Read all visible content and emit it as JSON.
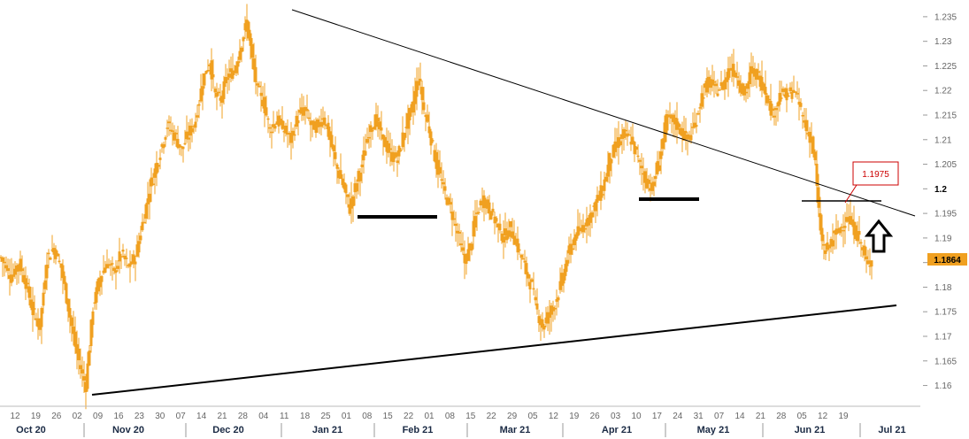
{
  "chart_data": {
    "type": "candlestick",
    "title": "",
    "xlabel": "",
    "ylabel": "",
    "ylim": [
      1.1565,
      1.2375
    ],
    "y_ticks": [
      "1.16",
      "1.165",
      "1.17",
      "1.175",
      "1.18",
      "1.185",
      "1.19",
      "1.195",
      "1.2",
      "1.205",
      "1.21",
      "1.215",
      "1.22",
      "1.225",
      "1.23",
      "1.235"
    ],
    "y_bold_tick": "1.2",
    "x_day_ticks": [
      "12",
      "19",
      "26",
      "02",
      "09",
      "16",
      "23",
      "30",
      "07",
      "14",
      "21",
      "28",
      "04",
      "11",
      "18",
      "25",
      "01",
      "08",
      "15",
      "22",
      "01",
      "08",
      "15",
      "22",
      "29",
      "05",
      "12",
      "19",
      "26",
      "03",
      "10",
      "17",
      "24",
      "31",
      "07",
      "14",
      "21",
      "28",
      "05",
      "12",
      "19"
    ],
    "x_month_labels": [
      "Oct 20",
      "Nov 20",
      "Dec 20",
      "Jan 21",
      "Feb 21",
      "Mar 21",
      "Apr 21",
      "May 21",
      "Jun 21",
      "Jul 21"
    ],
    "current_price_label": "1.1864",
    "annotation_label": "1.1975",
    "colors": {
      "candle": "#f0a020",
      "current_label_bg": "#f0a020",
      "annotation_border": "#cc0000",
      "line": "#000000"
    },
    "price_path": [
      [
        0,
        1.186
      ],
      [
        6,
        1.182
      ],
      [
        10,
        1.185
      ],
      [
        14,
        1.181
      ],
      [
        18,
        1.175
      ],
      [
        22,
        1.172
      ],
      [
        26,
        1.186
      ],
      [
        30,
        1.188
      ],
      [
        34,
        1.184
      ],
      [
        38,
        1.176
      ],
      [
        42,
        1.168
      ],
      [
        46,
        1.162
      ],
      [
        48,
        1.16
      ],
      [
        52,
        1.176
      ],
      [
        56,
        1.182
      ],
      [
        60,
        1.185
      ],
      [
        64,
        1.183
      ],
      [
        68,
        1.187
      ],
      [
        72,
        1.184
      ],
      [
        76,
        1.186
      ],
      [
        80,
        1.193
      ],
      [
        84,
        1.2
      ],
      [
        88,
        1.205
      ],
      [
        91,
        1.209
      ],
      [
        94,
        1.213
      ],
      [
        98,
        1.211
      ],
      [
        102,
        1.208
      ],
      [
        106,
        1.211
      ],
      [
        110,
        1.214
      ],
      [
        114,
        1.222
      ],
      [
        118,
        1.226
      ],
      [
        121,
        1.219
      ],
      [
        124,
        1.218
      ],
      [
        128,
        1.223
      ],
      [
        132,
        1.224
      ],
      [
        136,
        1.23
      ],
      [
        139,
        1.234
      ],
      [
        142,
        1.226
      ],
      [
        145,
        1.22
      ],
      [
        148,
        1.218
      ],
      [
        152,
        1.212
      ],
      [
        156,
        1.214
      ],
      [
        160,
        1.212
      ],
      [
        164,
        1.21
      ],
      [
        168,
        1.215
      ],
      [
        172,
        1.216
      ],
      [
        175,
        1.213
      ],
      [
        178,
        1.212
      ],
      [
        182,
        1.215
      ],
      [
        186,
        1.21
      ],
      [
        190,
        1.204
      ],
      [
        194,
        1.2
      ],
      [
        197,
        1.196
      ],
      [
        200,
        1.2
      ],
      [
        204,
        1.205
      ],
      [
        208,
        1.212
      ],
      [
        212,
        1.214
      ],
      [
        216,
        1.21
      ],
      [
        220,
        1.207
      ],
      [
        224,
        1.206
      ],
      [
        228,
        1.212
      ],
      [
        232,
        1.216
      ],
      [
        236,
        1.223
      ],
      [
        239,
        1.216
      ],
      [
        242,
        1.212
      ],
      [
        246,
        1.205
      ],
      [
        250,
        1.2
      ],
      [
        254,
        1.196
      ],
      [
        258,
        1.191
      ],
      [
        262,
        1.185
      ],
      [
        265,
        1.188
      ],
      [
        268,
        1.194
      ],
      [
        272,
        1.198
      ],
      [
        276,
        1.196
      ],
      [
        280,
        1.193
      ],
      [
        284,
        1.19
      ],
      [
        288,
        1.192
      ],
      [
        292,
        1.188
      ],
      [
        296,
        1.184
      ],
      [
        300,
        1.18
      ],
      [
        303,
        1.175
      ],
      [
        306,
        1.172
      ],
      [
        309,
        1.174
      ],
      [
        312,
        1.176
      ],
      [
        316,
        1.18
      ],
      [
        320,
        1.186
      ],
      [
        324,
        1.19
      ],
      [
        328,
        1.192
      ],
      [
        332,
        1.194
      ],
      [
        336,
        1.197
      ],
      [
        340,
        1.2
      ],
      [
        344,
        1.206
      ],
      [
        348,
        1.209
      ],
      [
        352,
        1.211
      ],
      [
        356,
        1.21
      ],
      [
        360,
        1.206
      ],
      [
        364,
        1.202
      ],
      [
        368,
        1.2
      ],
      [
        372,
        1.206
      ],
      [
        376,
        1.214
      ],
      [
        380,
        1.214
      ],
      [
        384,
        1.212
      ],
      [
        388,
        1.21
      ],
      [
        392,
        1.213
      ],
      [
        396,
        1.219
      ],
      [
        400,
        1.222
      ],
      [
        404,
        1.22
      ],
      [
        408,
        1.221
      ],
      [
        412,
        1.225
      ],
      [
        416,
        1.223
      ],
      [
        420,
        1.219
      ],
      [
        424,
        1.224
      ],
      [
        428,
        1.223
      ],
      [
        432,
        1.22
      ],
      [
        436,
        1.215
      ],
      [
        440,
        1.219
      ],
      [
        444,
        1.219
      ],
      [
        448,
        1.22
      ],
      [
        452,
        1.216
      ],
      [
        455,
        1.212
      ],
      [
        458,
        1.21
      ],
      [
        460,
        1.205
      ],
      [
        462,
        1.195
      ],
      [
        464,
        1.189
      ],
      [
        466,
        1.187
      ],
      [
        470,
        1.19
      ],
      [
        474,
        1.192
      ],
      [
        478,
        1.194
      ],
      [
        482,
        1.192
      ],
      [
        486,
        1.189
      ],
      [
        488,
        1.186
      ],
      [
        490,
        1.184
      ],
      [
        492,
        1.1864
      ]
    ]
  }
}
